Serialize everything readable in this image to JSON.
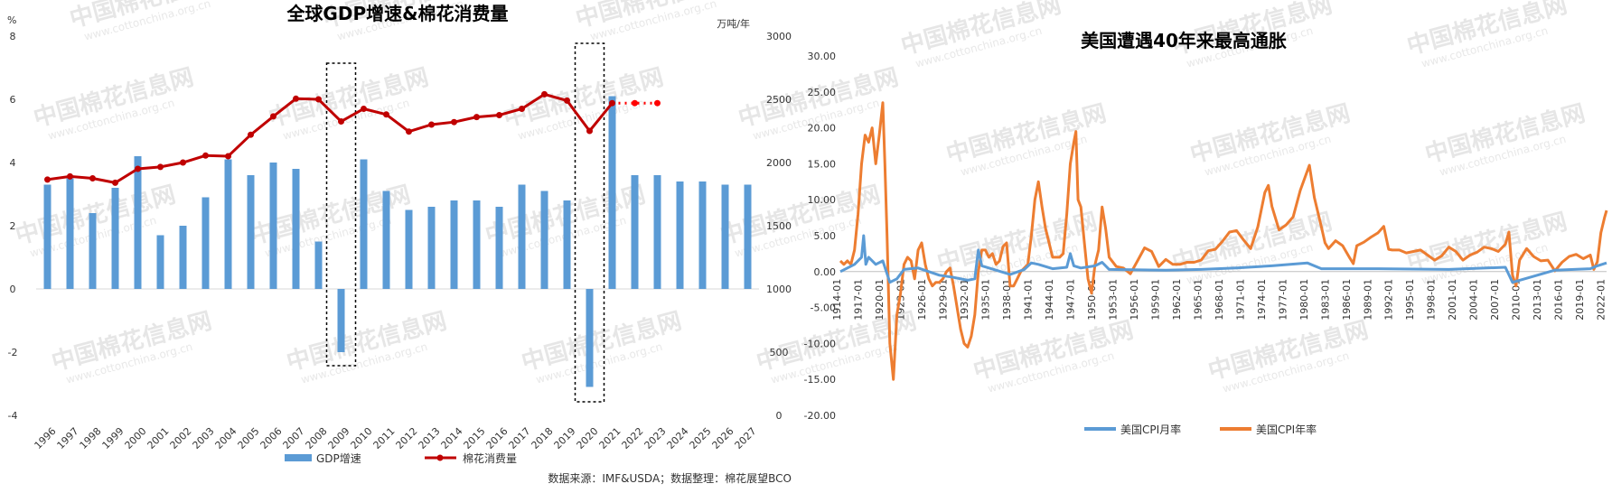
{
  "left": {
    "title": "全球GDP增速&棉花消费量",
    "y_left_unit": "%",
    "y_right_unit": "万吨/年",
    "source": "数据来源：IMF&USDA；数据整理：棉花展望BCO",
    "legend": {
      "bar": "GDP增速",
      "line": "棉花消费量"
    },
    "colors": {
      "bar": "#5b9bd5",
      "line": "#c00000",
      "forecast": "#ff0000"
    }
  },
  "right": {
    "title": "美国遭遇40年来最高通胀",
    "legend": {
      "mom": "美国CPI月率",
      "yoy": "美国CPI年率"
    },
    "colors": {
      "mom": "#5b9bd5",
      "yoy": "#ed7d31"
    }
  },
  "watermark": {
    "brand": "中国棉花信息网",
    "url": "www.cottonchina.org.cn"
  },
  "chart_data": [
    {
      "type": "bar",
      "title": "全球GDP增速&棉花消费量",
      "categories": [
        "1996",
        "1997",
        "1998",
        "1999",
        "2000",
        "2001",
        "2002",
        "2003",
        "2004",
        "2005",
        "2006",
        "2007",
        "2008",
        "2009",
        "2010",
        "2011",
        "2012",
        "2013",
        "2014",
        "2015",
        "2016",
        "2017",
        "2018",
        "2019",
        "2020",
        "2021",
        "2022",
        "2023",
        "2024",
        "2025",
        "2026",
        "2027"
      ],
      "y_left": {
        "label": "%",
        "lim": [
          -4,
          8
        ],
        "ticks": [
          -4,
          -2,
          0,
          2,
          4,
          6,
          8
        ]
      },
      "y_right": {
        "label": "万吨/年",
        "lim": [
          0,
          3000
        ],
        "ticks": [
          0,
          500,
          1000,
          1500,
          2000,
          2500,
          3000
        ]
      },
      "series": [
        {
          "name": "GDP增速",
          "type": "bar",
          "axis": "left",
          "values": [
            3.3,
            3.5,
            2.4,
            3.2,
            4.2,
            1.7,
            2.0,
            2.9,
            4.1,
            3.6,
            4.0,
            3.8,
            1.5,
            -2.0,
            4.1,
            3.1,
            2.5,
            2.6,
            2.8,
            2.8,
            2.6,
            3.3,
            3.1,
            2.8,
            -3.1,
            6.1,
            3.6,
            3.6,
            3.4,
            3.4,
            3.3,
            3.3
          ]
        },
        {
          "name": "棉花消费量",
          "type": "line",
          "axis": "right",
          "values": [
            1865,
            1890,
            1875,
            1840,
            1950,
            1965,
            2000,
            2055,
            2050,
            2220,
            2365,
            2505,
            2500,
            2325,
            2425,
            2380,
            2245,
            2300,
            2320,
            2360,
            2375,
            2425,
            2540,
            2490,
            2250,
            2470,
            2470,
            2470,
            null,
            null,
            null,
            null
          ],
          "forecast_from": "2021"
        }
      ],
      "highlight_boxes": [
        "2009",
        "2020"
      ],
      "grid": false
    },
    {
      "type": "line",
      "title": "美国遭遇40年来最高通胀",
      "xlabels": [
        "1914-01",
        "1917-01",
        "1920-01",
        "1923-01",
        "1926-01",
        "1929-01",
        "1932-01",
        "1935-01",
        "1938-01",
        "1941-01",
        "1944-01",
        "1947-01",
        "1950-01",
        "1953-01",
        "1956-01",
        "1959-01",
        "1962-01",
        "1965-01",
        "1968-01",
        "1971-01",
        "1974-01",
        "1977-01",
        "1980-01",
        "1983-01",
        "1986-01",
        "1989-01",
        "1992-01",
        "1995-01",
        "1998-01",
        "2001-01",
        "2004-01",
        "2007-01",
        "2010-01",
        "2013-01",
        "2016-01",
        "2019-01",
        "2022-01"
      ],
      "ylim": [
        -20,
        30
      ],
      "yticks": [
        "-20.00",
        "-15.00",
        "-10.00",
        "-5.00",
        "0.00",
        "5.00",
        "10.00",
        "15.00",
        "20.00",
        "25.00",
        "30.00"
      ],
      "legend_position": "bottom",
      "grid": false,
      "series": [
        {
          "name": "美国CPI年率",
          "x": [
            1914.0,
            1914.5,
            1915.0,
            1915.5,
            1916.0,
            1916.5,
            1917.0,
            1917.5,
            1918.0,
            1918.5,
            1919.0,
            1919.5,
            1920.0,
            1920.3,
            1920.6,
            1921.0,
            1921.5,
            1922.0,
            1922.5,
            1923.0,
            1923.5,
            1924.0,
            1924.5,
            1925.0,
            1925.5,
            1926.0,
            1926.5,
            1927.0,
            1927.5,
            1928.0,
            1928.5,
            1929.0,
            1929.5,
            1930.0,
            1930.5,
            1931.0,
            1931.5,
            1932.0,
            1932.5,
            1933.0,
            1933.5,
            1934.0,
            1934.5,
            1935.0,
            1935.5,
            1936.0,
            1936.5,
            1937.0,
            1937.5,
            1938.0,
            1938.5,
            1939.0,
            1939.5,
            1940.0,
            1940.5,
            1941.0,
            1941.5,
            1942.0,
            1942.5,
            1943.0,
            1943.5,
            1944.0,
            1944.5,
            1945.0,
            1945.5,
            1946.0,
            1946.5,
            1947.0,
            1947.3,
            1947.6,
            1948.0,
            1948.5,
            1949.0,
            1949.5,
            1950.0,
            1950.5,
            1951.0,
            1951.5,
            1952.0,
            1953.0,
            1954.0,
            1955.0,
            1956.0,
            1957.0,
            1958.0,
            1959.0,
            1960.0,
            1961.0,
            1962.0,
            1963.0,
            1964.0,
            1965.0,
            1966.0,
            1967.0,
            1968.0,
            1969.0,
            1970.0,
            1971.0,
            1972.0,
            1973.0,
            1974.0,
            1974.5,
            1975.0,
            1976.0,
            1977.0,
            1978.0,
            1979.0,
            1980.0,
            1980.3,
            1981.0,
            1982.0,
            1982.5,
            1983.0,
            1984.0,
            1985.0,
            1986.0,
            1986.5,
            1987.0,
            1988.0,
            1989.0,
            1990.0,
            1990.8,
            1991.5,
            1992.0,
            1993.0,
            1994.0,
            1995.0,
            1996.0,
            1997.0,
            1998.0,
            1999.0,
            2000.0,
            2001.0,
            2002.0,
            2003.0,
            2004.0,
            2005.0,
            2006.0,
            2007.0,
            2008.0,
            2008.5,
            2009.0,
            2009.5,
            2010.0,
            2011.0,
            2012.0,
            2013.0,
            2014.0,
            2015.0,
            2016.0,
            2017.0,
            2018.0,
            2019.0,
            2020.0,
            2020.5,
            2021.0,
            2021.5,
            2022.0,
            2022.3
          ],
          "y": [
            1.5,
            1.0,
            1.5,
            1.0,
            3.0,
            8.0,
            15.0,
            19.0,
            18.0,
            20.0,
            15.0,
            19.0,
            23.5,
            15.0,
            5.0,
            -10.0,
            -15.0,
            -6.0,
            -3.0,
            1.0,
            2.0,
            1.5,
            -1.0,
            3.0,
            4.0,
            1.0,
            -1.0,
            -2.0,
            -1.5,
            -1.5,
            -1.0,
            0.0,
            0.5,
            -2.0,
            -5.0,
            -8.0,
            -10.0,
            -10.5,
            -9.0,
            -6.0,
            0.0,
            3.0,
            3.0,
            2.0,
            2.5,
            1.0,
            1.5,
            3.5,
            4.0,
            -2.0,
            -2.0,
            -1.0,
            0.0,
            0.5,
            1.0,
            5.0,
            10.0,
            12.5,
            9.0,
            6.0,
            4.0,
            2.0,
            2.0,
            2.0,
            2.5,
            8.0,
            15.0,
            18.0,
            19.5,
            10.0,
            9.0,
            4.0,
            -1.0,
            -3.0,
            1.0,
            3.0,
            9.0,
            6.0,
            2.0,
            0.7,
            0.5,
            -0.3,
            1.5,
            3.3,
            2.8,
            0.7,
            1.7,
            1.0,
            1.0,
            1.3,
            1.3,
            1.6,
            2.9,
            3.1,
            4.2,
            5.5,
            5.7,
            4.4,
            3.2,
            6.2,
            11.0,
            12.0,
            9.1,
            5.8,
            6.5,
            7.6,
            11.3,
            14.0,
            14.8,
            10.3,
            6.2,
            4.0,
            3.2,
            4.3,
            3.6,
            1.9,
            1.1,
            3.6,
            4.1,
            4.8,
            5.4,
            6.3,
            3.1,
            3.0,
            3.0,
            2.6,
            2.8,
            3.0,
            2.3,
            1.6,
            2.2,
            3.4,
            2.8,
            1.6,
            2.3,
            2.7,
            3.4,
            3.2,
            2.8,
            3.8,
            5.5,
            -0.5,
            -2.0,
            1.6,
            3.2,
            2.1,
            1.5,
            1.6,
            0.1,
            1.3,
            2.1,
            2.4,
            1.8,
            2.3,
            0.3,
            1.4,
            5.4,
            7.5,
            8.5
          ]
        },
        {
          "name": "美国CPI月率",
          "x": [
            1914.0,
            1916.0,
            1917.0,
            1917.3,
            1917.6,
            1918.0,
            1919.0,
            1920.0,
            1920.5,
            1921.0,
            1922.0,
            1923.0,
            1925.0,
            1928.0,
            1930.0,
            1932.0,
            1933.0,
            1933.5,
            1934.0,
            1936.0,
            1938.0,
            1940.0,
            1941.0,
            1942.0,
            1944.0,
            1946.0,
            1946.5,
            1947.0,
            1948.0,
            1950.0,
            1951.0,
            1952.0,
            1960.0,
            1965.0,
            1970.0,
            1975.0,
            1980.0,
            1982.0,
            1990.0,
            2000.0,
            2008.0,
            2009.0,
            2015.0,
            2020.0,
            2021.0,
            2022.3
          ],
          "y": [
            0.0,
            1.0,
            2.0,
            5.0,
            1.0,
            2.0,
            1.0,
            1.5,
            0.0,
            -1.5,
            -1.0,
            0.3,
            0.5,
            -0.5,
            -0.8,
            -1.2,
            -1.0,
            3.0,
            0.8,
            0.2,
            -0.4,
            0.3,
            1.2,
            1.0,
            0.4,
            0.6,
            2.5,
            0.8,
            0.5,
            0.8,
            1.3,
            0.3,
            0.2,
            0.3,
            0.5,
            0.8,
            1.2,
            0.4,
            0.4,
            0.3,
            0.6,
            -1.5,
            0.2,
            0.4,
            0.8,
            1.2
          ]
        }
      ]
    }
  ]
}
